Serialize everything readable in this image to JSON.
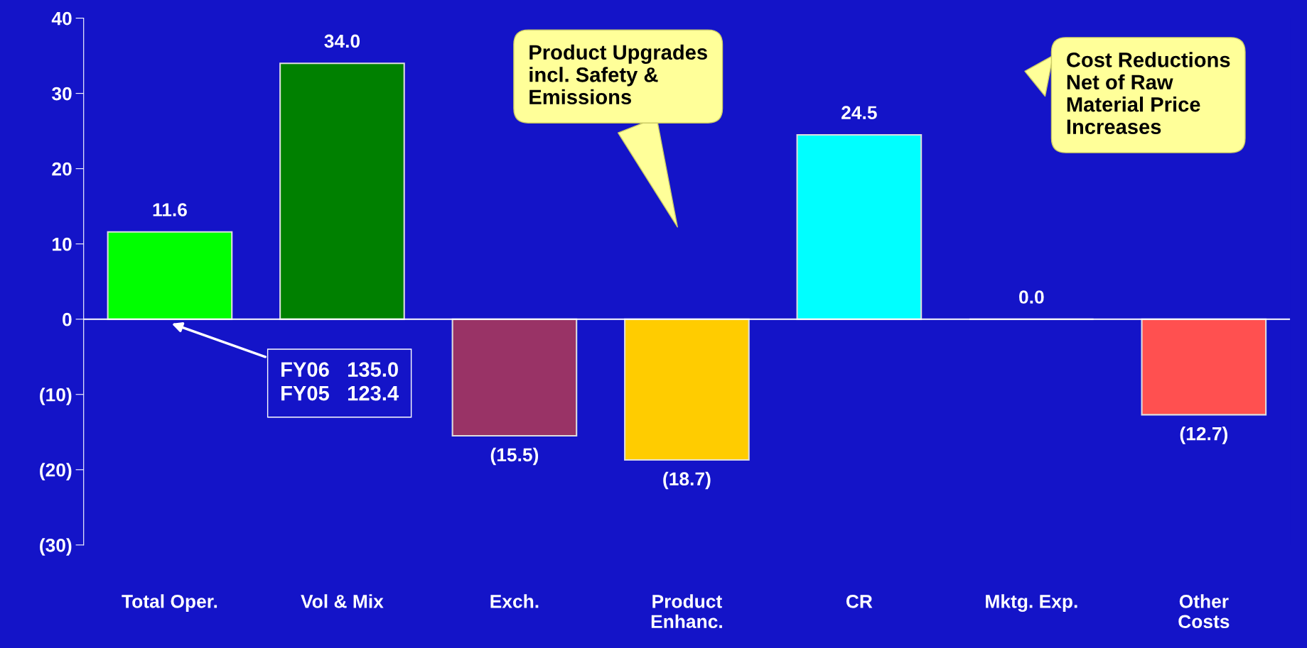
{
  "chart_data": {
    "type": "bar",
    "categories": [
      "Total Oper.",
      "Vol & Mix",
      "Exch.",
      "Product\nEnhanc.",
      "CR",
      "Mktg. Exp.",
      "Other\nCosts"
    ],
    "values": [
      11.6,
      34.0,
      -15.5,
      -18.7,
      24.5,
      0.0,
      -12.7
    ],
    "colors": [
      "#00ff00",
      "#008000",
      "#993366",
      "#ffcc00",
      "#00ffff",
      "#dddddd",
      "#ff5050"
    ],
    "value_labels": [
      "11.6",
      "34.0",
      "(15.5)",
      "(18.7)",
      "24.5",
      "0.0",
      "(12.7)"
    ],
    "ylim": [
      -30,
      40
    ],
    "yticks": [
      {
        "value": -30,
        "label": "(30)"
      },
      {
        "value": -20,
        "label": "(20)"
      },
      {
        "value": -10,
        "label": "(10)"
      },
      0,
      10,
      20,
      30,
      40
    ],
    "ref_lines": [
      {
        "axis": "y",
        "value": 0,
        "color": "#ffffff"
      }
    ],
    "annotations": [
      "FY06   135.0\nFY05   123.4",
      "Product Upgrades\nincl. Safety &\nEmissions",
      "Cost Reductions\nNet of Raw\nMaterial Price\nIncreases"
    ],
    "grid": false
  }
}
